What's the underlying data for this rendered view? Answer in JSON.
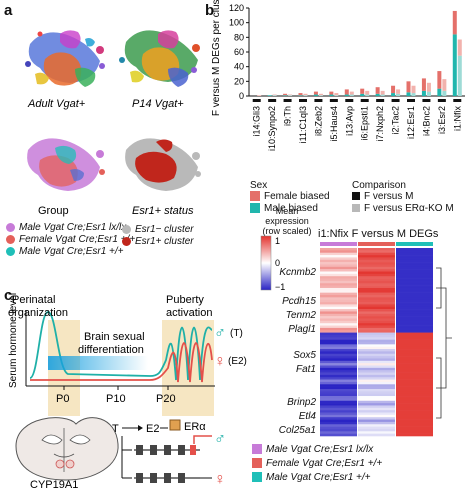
{
  "panel_a": {
    "letter": "a",
    "umap_titles": [
      "Adult Vgat+",
      "P14 Vgat+",
      "Group",
      "Esr1+ status"
    ],
    "group_legend": [
      {
        "label": "Male Vgat Cre;Esr1 lx/lx",
        "color": "#c77bd8"
      },
      {
        "label": "Female Vgat Cre;Esr1 +/+",
        "color": "#e4605a"
      },
      {
        "label": "Male Vgat Cre;Esr1 +/+",
        "color": "#1fbfb8"
      }
    ],
    "esr_legend": [
      {
        "label": "Esr1− cluster",
        "color": "#b9b9b9"
      },
      {
        "label": "Esr1+ cluster",
        "color": "#c0261c"
      }
    ]
  },
  "panel_b": {
    "letter": "b",
    "ylabel": "F versus M DEGs per cluster",
    "ylim": [
      0,
      120
    ],
    "yticks": [
      "0",
      "20",
      "40",
      "60",
      "80",
      "100",
      "120"
    ],
    "legend_sex_title": "Sex",
    "legend_sex": [
      {
        "label": "Female biased",
        "color": "#e4706a"
      },
      {
        "label": "Male biased",
        "color": "#21b6ad"
      }
    ],
    "legend_cmp_title": "Comparison",
    "legend_cmp": [
      {
        "label": "F versus M",
        "color": "#111111"
      },
      {
        "label": "F versus ERα-KO M",
        "color": "#b8b8b8"
      }
    ]
  },
  "chart_data": {
    "type": "bar",
    "categories": [
      "i14:Gli3",
      "i10:Synpo2",
      "i9:Th",
      "i11:C1ql3",
      "i8:Zeb2",
      "i5:Haus4",
      "i13:Avp",
      "i6:Epsti1",
      "i7:Nxph2",
      "i2:Tac2",
      "i12:Esr1",
      "i4:Bnc2",
      "i3:Esr2",
      "i1:Nfix"
    ],
    "series": [
      {
        "name": "Female biased",
        "values": [
          0,
          0,
          2,
          3,
          4,
          4,
          7,
          7,
          9,
          10,
          15,
          17,
          24,
          32
        ]
      },
      {
        "name": "Male biased",
        "values": [
          0,
          1,
          1,
          1,
          2,
          2,
          2,
          3,
          3,
          4,
          5,
          7,
          10,
          84
        ]
      },
      {
        "name": "F versus ERα-KO M (Female biased)",
        "values": [
          1,
          1,
          1,
          2,
          2,
          3,
          4,
          5,
          5,
          6,
          10,
          12,
          16,
          22
        ]
      },
      {
        "name": "F versus ERα-KO M (Male biased)",
        "values": [
          0,
          1,
          1,
          1,
          1,
          1,
          2,
          2,
          2,
          3,
          4,
          6,
          7,
          55
        ]
      }
    ],
    "comparison": [
      "F versus M",
      "F versus M",
      "F versus M",
      "F versus M",
      "F versus M",
      "F versus M",
      "F versus M",
      "F versus M",
      "F versus M",
      "F versus M",
      "F versus M",
      "F versus M",
      "F versus M",
      "F versus M"
    ],
    "ylabel": "F versus M DEGs per cluster",
    "ylim": [
      0,
      120
    ]
  },
  "heatmap": {
    "title": "i1:Nfix F versus M DEGs",
    "scale_title": "Mean expression (row scaled)",
    "scale_ticks": [
      "1",
      "0",
      "−1"
    ],
    "genes": [
      "Kcnmb2",
      "Pcdh15",
      "Tenm2",
      "Plagl1",
      "Sox5",
      "Fat1",
      "Brinp2",
      "Etl4",
      "Col25a1"
    ],
    "col_legend": [
      {
        "label": "Male Vgat Cre;Esr1 lx/lx",
        "color": "#c77bd8"
      },
      {
        "label": "Female Vgat Cre;Esr1 +/+",
        "color": "#e4605a"
      },
      {
        "label": "Male Vgat Cre;Esr1 +/+",
        "color": "#1fbfb8"
      }
    ]
  },
  "panel_c": {
    "letter": "c",
    "ylabel": "Serum hormone level",
    "perinatal": "Perinatal organization",
    "puberty": "Puberty activation",
    "differentiation": "Brain sexual differentiation",
    "ticks": [
      "P0",
      "P10",
      "P20"
    ],
    "male_sym": "♂",
    "female_sym": "♀",
    "male_label": "(T)",
    "female_label": "(E2)",
    "enzyme": "CYP19A1",
    "t_label": "T",
    "e2_label": "E2",
    "era_label": "ERα"
  }
}
